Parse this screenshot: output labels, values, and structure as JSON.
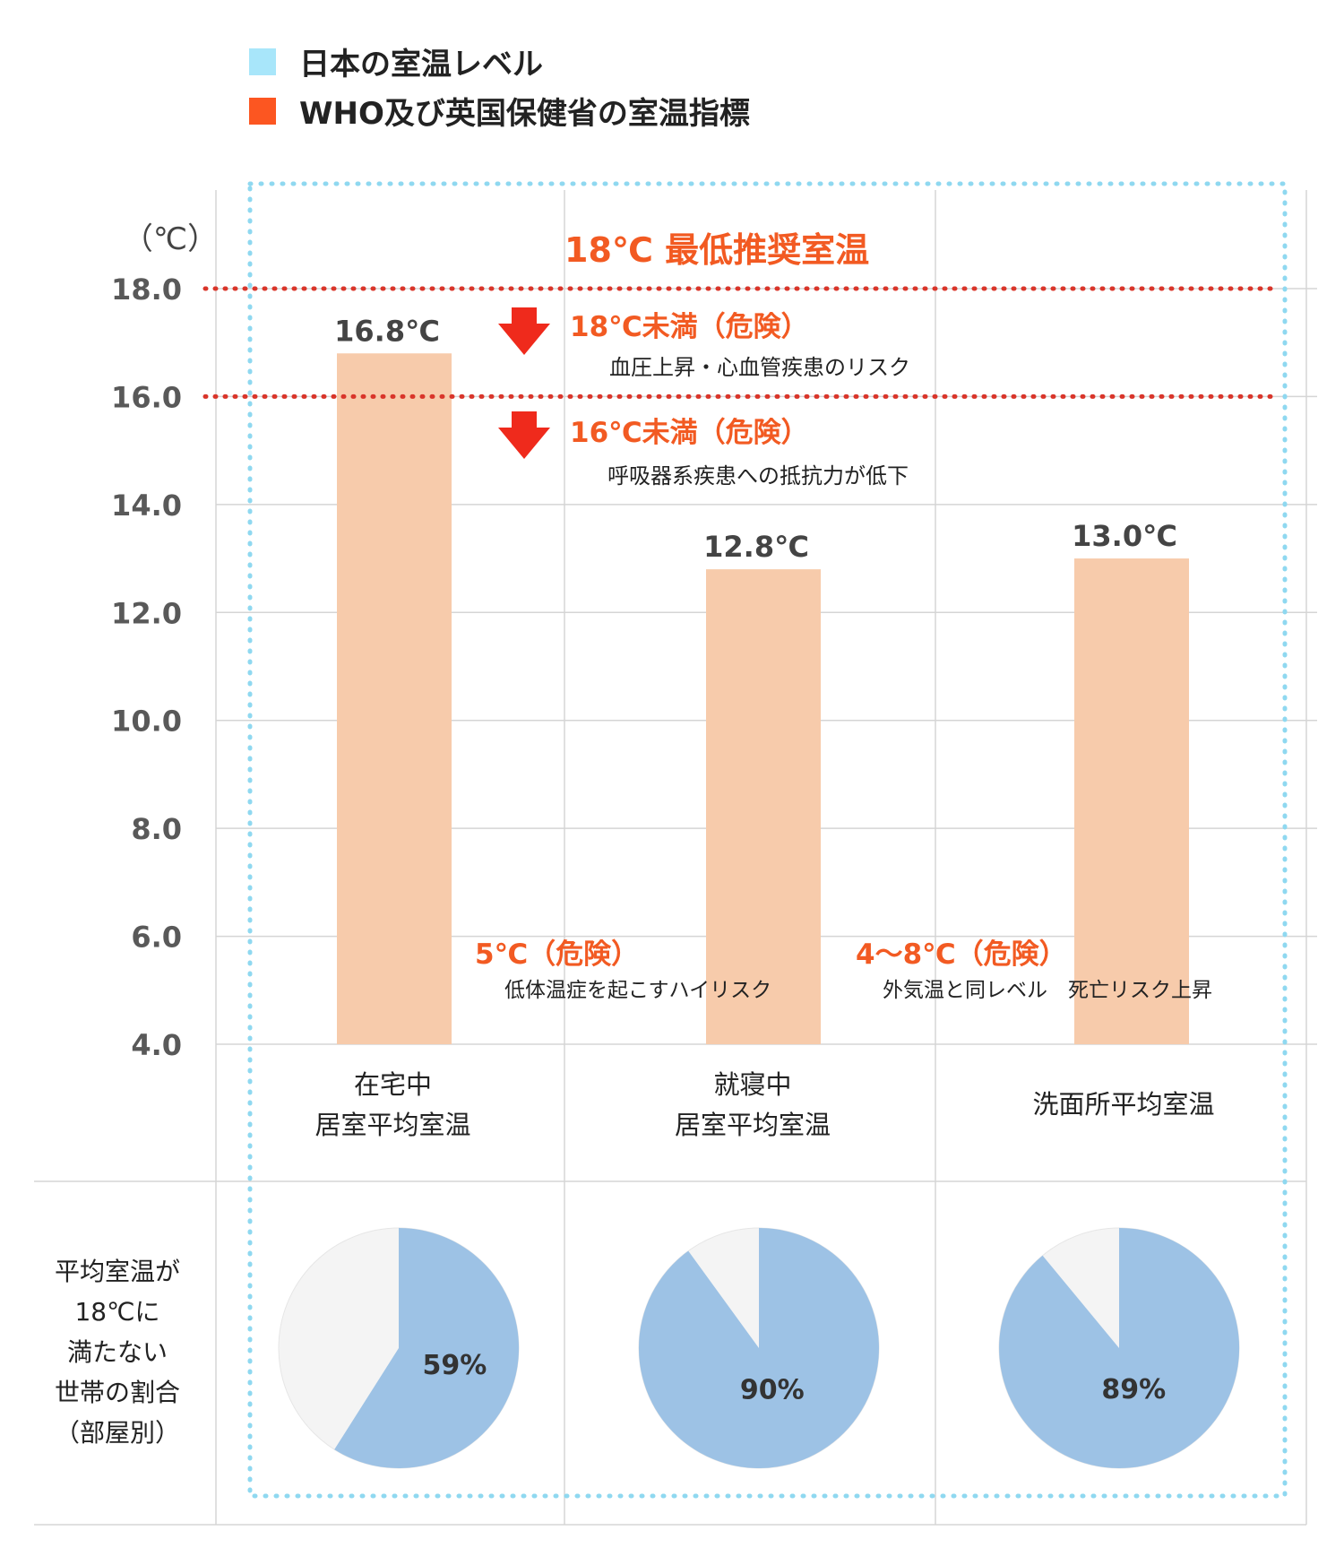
{
  "legend": [
    {
      "label": "日本の室温レベル",
      "color": "#a8e6fa"
    },
    {
      "label": "WHO及び英国保健省の室温指標",
      "color": "#fc5621"
    }
  ],
  "colors": {
    "bar": "#f7cbab",
    "threshold": "#d9352a",
    "alert": "#f25a22",
    "arrow": "#ef2a1c",
    "pie_fill": "#9dc2e5",
    "pie_rest": "#f4f4f4",
    "frame": "#8fd8f0",
    "grid": "#d5d5d5"
  },
  "chart_data": {
    "type": "bar",
    "unit_label": "（℃）",
    "ylim": [
      4,
      18
    ],
    "yticks": [
      "18.0",
      "16.0",
      "14.0",
      "12.0",
      "10.0",
      "8.0",
      "6.0",
      "4.0"
    ],
    "categories": [
      [
        "在宅中",
        "居室平均室温"
      ],
      [
        "就寝中",
        "居室平均室温"
      ],
      [
        "洗面所平均室温"
      ]
    ],
    "values": [
      16.8,
      12.8,
      13.0
    ],
    "value_labels": [
      "16.8℃",
      "12.8℃",
      "13.0℃"
    ],
    "thresholds": [
      {
        "value": 18,
        "title": "18℃  最低推奨室温"
      },
      {
        "value": 16
      }
    ],
    "annotations": [
      {
        "title": "18℃未満（危険）",
        "text": "血圧上昇・心血管疾患のリスク"
      },
      {
        "title": "16℃未満（危険）",
        "text": "呼吸器系疾患への抵抗力が低下"
      },
      {
        "title": "5℃（危険）",
        "text": "低体温症を起こすハイリスク"
      },
      {
        "title": "4～8℃（危険）",
        "text": "外気温と同レベル　死亡リスク上昇"
      }
    ],
    "pies": {
      "label_lines": [
        "平均室温が",
        "18℃に",
        "満たない",
        "世帯の割合",
        "（部屋別）"
      ],
      "values": [
        59,
        90,
        89
      ],
      "value_labels": [
        "59%",
        "90%",
        "89%"
      ]
    }
  }
}
